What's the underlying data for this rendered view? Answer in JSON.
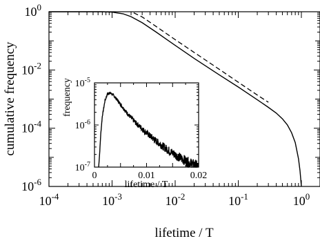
{
  "chart_data": [
    {
      "type": "line",
      "title": "",
      "xlabel": "lifetime / T",
      "ylabel": "cumulative frequency",
      "xscale": "log",
      "yscale": "log",
      "xlim": [
        0.0001,
        1.5
      ],
      "ylim": [
        1e-06,
        1
      ],
      "x_ticks": [
        {
          "value": 0.0001,
          "base": "10",
          "exp": "-4"
        },
        {
          "value": 0.001,
          "base": "10",
          "exp": "-3"
        },
        {
          "value": 0.01,
          "base": "10",
          "exp": "-2"
        },
        {
          "value": 0.1,
          "base": "10",
          "exp": "-1"
        },
        {
          "value": 1,
          "base": "10",
          "exp": "0"
        }
      ],
      "y_ticks": [
        {
          "value": 1e-06,
          "base": "10",
          "exp": "-6"
        },
        {
          "value": 0.0001,
          "base": "10",
          "exp": "-4"
        },
        {
          "value": 0.01,
          "base": "10",
          "exp": "-2"
        },
        {
          "value": 1,
          "base": "10",
          "exp": "0"
        }
      ],
      "grid": false,
      "series": [
        {
          "style": "solid",
          "x": [
            0.0001,
            0.0007,
            0.001,
            0.0015,
            0.002,
            0.003,
            0.005,
            0.007,
            0.01,
            0.02,
            0.05,
            0.1,
            0.2,
            0.3,
            0.4,
            0.5,
            0.6,
            0.7,
            0.8,
            0.9,
            0.95,
            1.0
          ],
          "y": [
            1,
            1,
            0.97,
            0.85,
            0.68,
            0.42,
            0.2,
            0.12,
            0.07,
            0.025,
            0.0068,
            0.0026,
            0.00095,
            0.00052,
            0.00033,
            0.00021,
            0.00013,
            7e-05,
            3.2e-05,
            9e-06,
            3.5e-06,
            1e-06
          ]
        },
        {
          "style": "dashed",
          "x": [
            0.0022,
            0.003,
            0.005,
            0.01,
            0.02,
            0.05,
            0.1,
            0.2,
            0.3
          ],
          "y": [
            0.92,
            0.66,
            0.31,
            0.11,
            0.04,
            0.0105,
            0.0038,
            0.00138,
            0.00078
          ]
        }
      ]
    },
    {
      "type": "line",
      "title": "",
      "xlabel": "lifetime / T",
      "ylabel": "frequency",
      "xscale": "linear",
      "yscale": "log",
      "xlim": [
        0,
        0.02
      ],
      "ylim": [
        1e-07,
        1e-05
      ],
      "x_ticks": [
        {
          "value": 0,
          "label": "0"
        },
        {
          "value": 0.01,
          "label": "0.01"
        },
        {
          "value": 0.02,
          "label": "0.02"
        }
      ],
      "y_ticks": [
        {
          "value": 1e-07,
          "base": "10",
          "exp": "-7"
        },
        {
          "value": 1e-06,
          "base": "10",
          "exp": "-6"
        },
        {
          "value": 1e-05,
          "base": "10",
          "exp": "-5"
        }
      ],
      "grid": false,
      "series": [
        {
          "style": "solid-noisy",
          "x": [
            0.0008,
            0.001,
            0.0012,
            0.0015,
            0.002,
            0.0025,
            0.003,
            0.0035,
            0.004,
            0.005,
            0.006,
            0.007,
            0.008,
            0.009,
            0.01,
            0.012,
            0.014,
            0.016,
            0.018,
            0.02
          ],
          "y": [
            1e-07,
            2.2e-07,
            6e-07,
            1.6e-06,
            3.7e-06,
            5.5e-06,
            5.8e-06,
            5.3e-06,
            4.5e-06,
            3.1e-06,
            2.1e-06,
            1.5e-06,
            1.1e-06,
            8.5e-07,
            6.5e-07,
            4e-07,
            2.6e-07,
            1.8e-07,
            1.3e-07,
            1e-07
          ]
        }
      ]
    }
  ]
}
